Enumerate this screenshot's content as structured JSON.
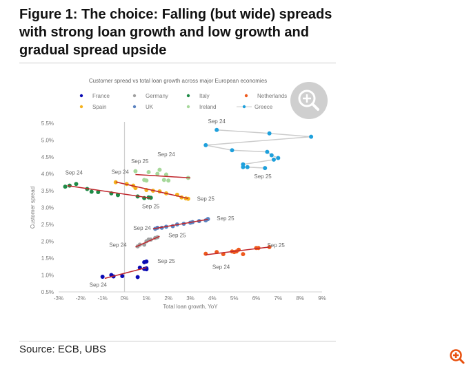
{
  "title": "Figure 1: The choice: Falling (but wide) spreads with strong loan growth and low growth and gradual spread upside",
  "source": "Source: ECB, UBS",
  "icons": {
    "zoom_big": "zoom-in-icon",
    "zoom_small": "zoom-in-icon",
    "zoom_small_color": "#e8500e"
  },
  "chart_data": {
    "type": "scatter",
    "title": "Customer spread vs total loan growth across major European economies",
    "xlabel": "Total loan growth, YoY",
    "ylabel": "Customer spread",
    "xlim": [
      -3,
      9
    ],
    "ylim": [
      0.5,
      5.5
    ],
    "xticks": [
      "-3%",
      "-2%",
      "-1%",
      "0%",
      "1%",
      "2%",
      "3%",
      "4%",
      "5%",
      "6%",
      "7%",
      "8%",
      "9%"
    ],
    "yticks": [
      "0.5%",
      "1.0%",
      "1.5%",
      "2.0%",
      "2.5%",
      "3.0%",
      "3.5%",
      "4.0%",
      "4.5%",
      "5.0%",
      "5.5%"
    ],
    "grid": false,
    "legend_placement": "top",
    "trendline_color": "#c0262c",
    "series": [
      {
        "name": "France",
        "color": "#0a0ab4",
        "points": [
          [
            -1.0,
            0.95
          ],
          [
            -0.6,
            1.0
          ],
          [
            -0.5,
            0.96
          ],
          [
            -0.1,
            0.97
          ],
          [
            0.6,
            0.94
          ],
          [
            0.7,
            1.22
          ],
          [
            0.9,
            1.38
          ],
          [
            1.0,
            1.4
          ],
          [
            0.9,
            1.18
          ],
          [
            1.0,
            1.17
          ],
          [
            1.0,
            1.2
          ]
        ],
        "trend": [
          [
            -0.9,
            0.9
          ],
          [
            1.0,
            1.22
          ]
        ]
      },
      {
        "name": "Germany",
        "color": "#a0a0a0",
        "points": [
          [
            0.6,
            1.85
          ],
          [
            0.7,
            1.9
          ],
          [
            0.9,
            1.9
          ],
          [
            1.0,
            2.0
          ],
          [
            1.1,
            2.05
          ],
          [
            1.2,
            2.05
          ],
          [
            1.4,
            2.1
          ],
          [
            1.5,
            2.12
          ]
        ],
        "trend": [
          [
            0.5,
            1.83
          ],
          [
            1.6,
            2.15
          ]
        ]
      },
      {
        "name": "Italy",
        "color": "#1e8a46",
        "points": [
          [
            -2.7,
            3.62
          ],
          [
            -2.5,
            3.65
          ],
          [
            -2.2,
            3.7
          ],
          [
            -1.7,
            3.55
          ],
          [
            -1.5,
            3.47
          ],
          [
            -1.2,
            3.46
          ],
          [
            -0.6,
            3.42
          ],
          [
            -0.3,
            3.38
          ],
          [
            -0.3,
            3.37
          ],
          [
            0.6,
            3.33
          ],
          [
            0.9,
            3.28
          ],
          [
            1.1,
            3.3
          ],
          [
            1.2,
            3.29
          ]
        ],
        "trend": [
          [
            -2.6,
            3.65
          ],
          [
            1.2,
            3.28
          ]
        ]
      },
      {
        "name": "Netherlands",
        "color": "#ee5a1e",
        "points": [
          [
            3.7,
            1.63
          ],
          [
            4.2,
            1.68
          ],
          [
            4.5,
            1.62
          ],
          [
            4.9,
            1.7
          ],
          [
            5.0,
            1.68
          ],
          [
            5.1,
            1.7
          ],
          [
            5.2,
            1.75
          ],
          [
            5.4,
            1.62
          ],
          [
            6.0,
            1.8
          ],
          [
            6.1,
            1.8
          ],
          [
            6.6,
            1.83
          ]
        ],
        "trend": [
          [
            3.7,
            1.6
          ],
          [
            6.6,
            1.83
          ]
        ]
      },
      {
        "name": "Spain",
        "color": "#f5b21e",
        "points": [
          [
            -0.4,
            3.75
          ],
          [
            0.1,
            3.7
          ],
          [
            0.4,
            3.65
          ],
          [
            0.5,
            3.58
          ],
          [
            1.0,
            3.52
          ],
          [
            1.3,
            3.5
          ],
          [
            1.6,
            3.48
          ],
          [
            1.9,
            3.42
          ],
          [
            2.4,
            3.38
          ],
          [
            2.6,
            3.3
          ],
          [
            2.8,
            3.27
          ],
          [
            2.9,
            3.26
          ]
        ],
        "trend": [
          [
            -0.4,
            3.76
          ],
          [
            2.9,
            3.27
          ]
        ]
      },
      {
        "name": "UK",
        "color": "#5a82c0",
        "points": [
          [
            1.4,
            2.37
          ],
          [
            1.5,
            2.4
          ],
          [
            1.7,
            2.4
          ],
          [
            1.9,
            2.43
          ],
          [
            2.2,
            2.45
          ],
          [
            2.4,
            2.5
          ],
          [
            2.7,
            2.52
          ],
          [
            3.0,
            2.55
          ],
          [
            3.1,
            2.57
          ],
          [
            3.4,
            2.6
          ],
          [
            3.7,
            2.62
          ],
          [
            3.8,
            2.66
          ]
        ],
        "trend": [
          [
            1.3,
            2.37
          ],
          [
            3.8,
            2.65
          ]
        ]
      },
      {
        "name": "Ireland",
        "color": "#a6d89a",
        "points": [
          [
            0.5,
            4.08
          ],
          [
            1.0,
            3.8
          ],
          [
            1.1,
            4.05
          ],
          [
            1.6,
            4.12
          ],
          [
            1.5,
            4.0
          ],
          [
            1.9,
            3.98
          ],
          [
            1.8,
            3.82
          ],
          [
            2.0,
            3.8
          ],
          [
            0.9,
            3.82
          ],
          [
            2.9,
            3.88
          ]
        ],
        "trend": [
          [
            0.5,
            3.98
          ],
          [
            3.0,
            3.88
          ]
        ]
      },
      {
        "name": "Greece",
        "color": "#1ea0dc",
        "line_color": "#cccccc",
        "connected": true,
        "points": [
          [
            4.2,
            5.3
          ],
          [
            6.6,
            5.2
          ],
          [
            8.5,
            5.1
          ],
          [
            3.7,
            4.85
          ],
          [
            4.9,
            4.7
          ],
          [
            6.5,
            4.65
          ],
          [
            6.7,
            4.55
          ],
          [
            7.0,
            4.47
          ],
          [
            6.8,
            4.42
          ],
          [
            5.4,
            4.28
          ],
          [
            5.4,
            4.2
          ],
          [
            5.6,
            4.2
          ],
          [
            6.4,
            4.17
          ]
        ]
      }
    ],
    "annotations": [
      {
        "text": "Sep 24",
        "x": 4.2,
        "y": 5.5
      },
      {
        "text": "Sep 25",
        "x": 6.3,
        "y": 3.87
      },
      {
        "text": "Sep 24",
        "x": 1.9,
        "y": 4.52
      },
      {
        "text": "Sep 25",
        "x": 0.7,
        "y": 4.32
      },
      {
        "text": "Sep 24",
        "x": -2.3,
        "y": 3.98
      },
      {
        "text": "Sep 24",
        "x": -0.2,
        "y": 4.0
      },
      {
        "text": "Sep 25",
        "x": 3.7,
        "y": 3.2
      },
      {
        "text": "Sep 25",
        "x": 1.2,
        "y": 2.98
      },
      {
        "text": "Sep 25",
        "x": 4.6,
        "y": 2.62
      },
      {
        "text": "Sep 24",
        "x": 0.8,
        "y": 2.34
      },
      {
        "text": "Sep 25",
        "x": 2.4,
        "y": 2.12
      },
      {
        "text": "Sep 24",
        "x": -0.3,
        "y": 1.84
      },
      {
        "text": "Sep 25",
        "x": 6.9,
        "y": 1.83
      },
      {
        "text": "Sep 24",
        "x": 4.4,
        "y": 1.18
      },
      {
        "text": "Sep 25",
        "x": 1.9,
        "y": 1.36
      },
      {
        "text": "Sep 24",
        "x": -1.2,
        "y": 0.65
      }
    ]
  }
}
